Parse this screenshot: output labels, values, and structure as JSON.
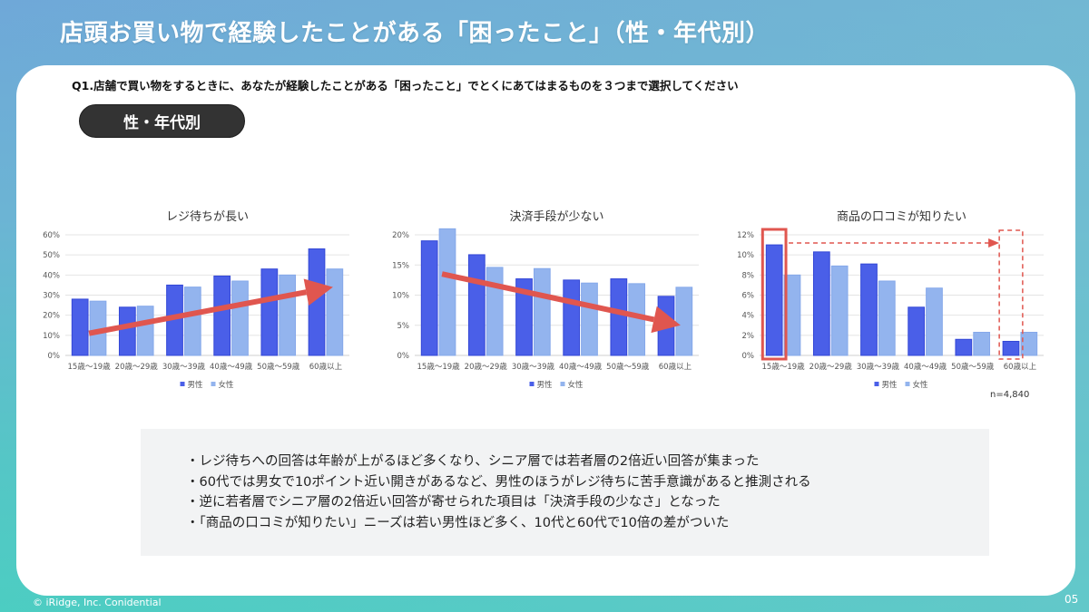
{
  "header": {
    "title": "店頭お買い物で経験したことがある「困ったこと」（性・年代別）"
  },
  "question": "Q1.店舗で買い物をするときに、あなたが経験したことがある「困ったこと」でとくにあてはまるものを３つまで選択してください",
  "segment_pill": "性・年代別",
  "sample_size": "n=4,840",
  "summary": [
    "・レジ待ちへの回答は年齢が上がるほど多くなり、シニア層では若者層の2倍近い回答が集まった",
    "・60代では男女で10ポイント近い開きがあるなど、男性のほうがレジ待ちに苦手意識があると推測される",
    "・逆に若者層でシニア層の2倍近い回答が寄せられた項目は「決済手段の少なさ」となった",
    "・「商品の口コミが知りたい」ニーズは若い男性ほど多く、10代と60代で10倍の差がついた"
  ],
  "footer": {
    "copyright": "© iRidge, Inc. Conidential",
    "page_number": "05"
  },
  "colors": {
    "male": "#4a5fe8",
    "female": "#93b4ee",
    "highlight": "#e0564f",
    "grid": "#e4e4e4"
  },
  "chart_data": [
    {
      "type": "bar",
      "title": "レジ待ちが長い",
      "categories": [
        "15歳～19歳",
        "20歳～29歳",
        "30歳～39歳",
        "40歳～49歳",
        "50歳～59歳",
        "60歳以上"
      ],
      "series": [
        {
          "name": "男性",
          "values": [
            28,
            24,
            35,
            39.5,
            43,
            53
          ]
        },
        {
          "name": "女性",
          "values": [
            27,
            24.5,
            34,
            37,
            40,
            43
          ]
        }
      ],
      "ylim": [
        0,
        60
      ],
      "yticks": [
        0,
        10,
        20,
        30,
        40,
        50,
        60
      ],
      "ytick_suffix": "%",
      "grid": true,
      "legend": "bottom",
      "annotation": "upward trend arrow from 15-19 to 60+"
    },
    {
      "type": "bar",
      "title": "決済手段が少ない",
      "categories": [
        "15歳～19歳",
        "20歳～29歳",
        "30歳～39歳",
        "40歳～49歳",
        "50歳～59歳",
        "60歳以上"
      ],
      "series": [
        {
          "name": "男性",
          "values": [
            19,
            16.7,
            12.7,
            12.5,
            12.7,
            9.8
          ]
        },
        {
          "name": "女性",
          "values": [
            21,
            14.6,
            14.4,
            12,
            11.9,
            11.3
          ]
        }
      ],
      "ylim": [
        0,
        20
      ],
      "yticks": [
        0,
        5,
        10,
        15,
        20
      ],
      "ytick_suffix": "%",
      "grid": true,
      "legend": "bottom",
      "annotation": "downward trend arrow from 15-19 to 60+"
    },
    {
      "type": "bar",
      "title": "商品の口コミが知りたい",
      "categories": [
        "15歳～19歳",
        "20歳～29歳",
        "30歳～39歳",
        "40歳～49歳",
        "50歳～59歳",
        "60歳以上"
      ],
      "series": [
        {
          "name": "男性",
          "values": [
            11,
            10.3,
            9.1,
            4.8,
            1.6,
            1.4
          ]
        },
        {
          "name": "女性",
          "values": [
            8,
            8.9,
            7.4,
            6.7,
            2.3,
            2.3
          ]
        }
      ],
      "ylim": [
        0,
        12
      ],
      "yticks": [
        0,
        2,
        4,
        6,
        8,
        10,
        12
      ],
      "ytick_suffix": "%",
      "grid": true,
      "legend": "bottom",
      "annotation": "solid box on 15-19 male, dashed arrow to dashed box on 60+ male"
    }
  ]
}
